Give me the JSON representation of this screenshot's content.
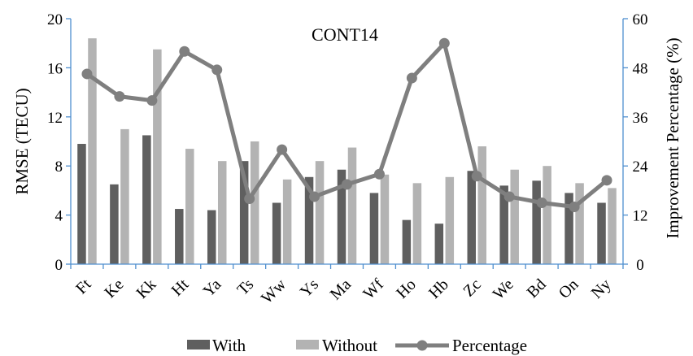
{
  "chart_data": {
    "type": "bar",
    "title": "CONT14",
    "categories": [
      "Ft",
      "Ke",
      "Kk",
      "Ht",
      "Ya",
      "Ts",
      "Ww",
      "Ys",
      "Ma",
      "Wf",
      "Ho",
      "Hb",
      "Zc",
      "We",
      "Bd",
      "On",
      "Ny"
    ],
    "series": [
      {
        "name": "With",
        "type": "bar",
        "axis": "left",
        "color": "#5f5f5f",
        "values": [
          9.8,
          6.5,
          10.5,
          4.5,
          4.4,
          8.4,
          5.0,
          7.1,
          7.7,
          5.8,
          3.6,
          3.3,
          7.6,
          6.4,
          6.8,
          5.8,
          5.0
        ]
      },
      {
        "name": "Without",
        "type": "bar",
        "axis": "left",
        "color": "#b3b3b3",
        "values": [
          18.4,
          11.0,
          17.5,
          9.4,
          8.4,
          10.0,
          6.9,
          8.4,
          9.5,
          7.3,
          6.6,
          7.1,
          9.6,
          7.7,
          8.0,
          6.6,
          6.2
        ]
      },
      {
        "name": "Percentage",
        "type": "line",
        "axis": "right",
        "color": "#7f7f7f",
        "values": [
          46.5,
          41.0,
          40.0,
          52.0,
          47.5,
          16.0,
          28.0,
          16.5,
          19.5,
          22.0,
          45.5,
          54.0,
          21.5,
          16.5,
          15.0,
          14.0,
          20.5
        ]
      }
    ],
    "ylabel": "RMSE (TECU)",
    "y2label": "Improvement Percentage (%)",
    "ylim": [
      0,
      20
    ],
    "yticks": [
      0,
      4,
      8,
      12,
      16,
      20
    ],
    "y2lim": [
      0,
      60
    ],
    "y2ticks": [
      0,
      12,
      24,
      36,
      48,
      60
    ],
    "grid": false,
    "legend": "bottom"
  }
}
